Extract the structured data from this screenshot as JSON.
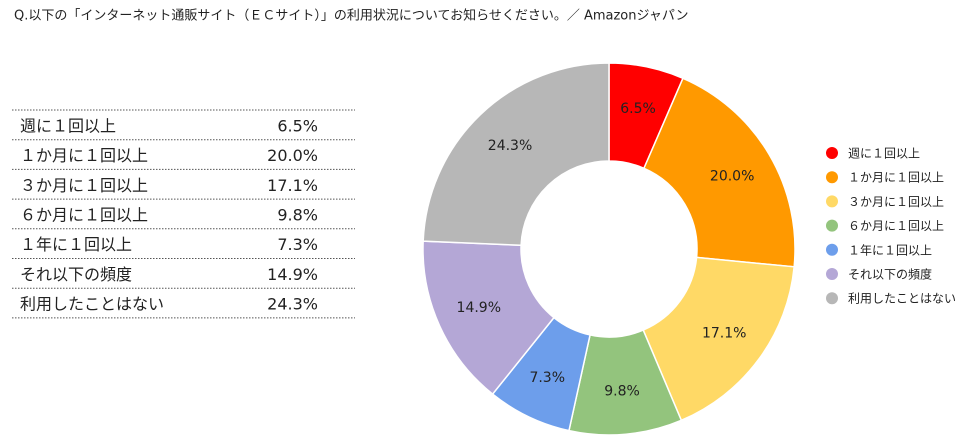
{
  "chart_data": {
    "type": "donut",
    "title": "Q.以下の「インターネット通販サイト（ＥＣサイト）」の利用状況についてお知らせください。／ Amazonジャパン",
    "categories": [
      "週に１回以上",
      "１か月に１回以上",
      "３か月に１回以上",
      "６か月に１回以上",
      "１年に１回以上",
      "それ以下の頻度",
      "利用したことはない"
    ],
    "values": [
      6.5,
      20.0,
      17.1,
      9.8,
      7.3,
      14.9,
      24.3
    ],
    "value_labels": [
      "6.5%",
      "20.0%",
      "17.1%",
      "9.8%",
      "7.3%",
      "14.9%",
      "24.3%"
    ],
    "colors": [
      "#ff0000",
      "#ff9900",
      "#ffd966",
      "#93c47d",
      "#6d9eeb",
      "#b4a7d6",
      "#b7b7b7"
    ],
    "legend": "right"
  }
}
